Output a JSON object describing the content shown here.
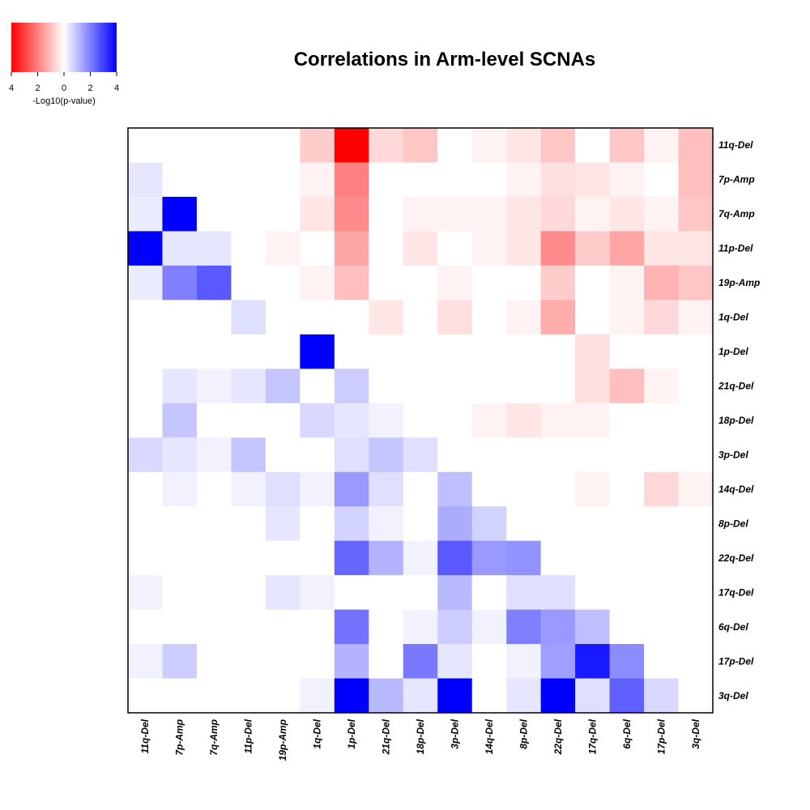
{
  "chart_data": {
    "type": "heatmap",
    "title": "Correlations in Arm-level SCNAs",
    "columns": [
      "11q-Del",
      "7p-Amp",
      "7q-Amp",
      "11p-Del",
      "19p-Amp",
      "1q-Del",
      "1p-Del",
      "21q-Del",
      "18p-Del",
      "3p-Del",
      "14q-Del",
      "8p-Del",
      "22q-Del",
      "17q-Del",
      "6q-Del",
      "17p-Del",
      "3q-Del"
    ],
    "rows": [
      "11q-Del",
      "7p-Amp",
      "7q-Amp",
      "11p-Del",
      "19p-Amp",
      "1q-Del",
      "1p-Del",
      "21q-Del",
      "18p-Del",
      "3p-Del",
      "14q-Del",
      "8p-Del",
      "22q-Del",
      "17q-Del",
      "6q-Del",
      "17p-Del",
      "3q-Del"
    ],
    "value_note": "signed -Log10(p-value): negative = red, positive = blue",
    "values": [
      [
        0,
        0,
        0,
        0,
        0,
        -0.8,
        -4,
        -0.6,
        -0.9,
        0,
        -0.2,
        -0.4,
        -0.9,
        0,
        -0.9,
        -0.2,
        -1.0
      ],
      [
        0.4,
        0,
        0,
        0,
        0,
        -0.2,
        -2.0,
        0,
        0,
        0,
        0,
        -0.2,
        -0.5,
        -0.4,
        -0.2,
        0,
        -1.0
      ],
      [
        0.3,
        4,
        0,
        0,
        0,
        -0.4,
        -1.8,
        0,
        -0.2,
        -0.2,
        -0.2,
        -0.4,
        -0.6,
        -0.2,
        -0.4,
        -0.2,
        -0.9
      ],
      [
        4,
        0.4,
        0.4,
        0,
        -0.2,
        0,
        -1.4,
        0,
        -0.4,
        0,
        -0.2,
        -0.4,
        -1.8,
        -0.8,
        -1.4,
        -0.4,
        -0.4
      ],
      [
        0.3,
        2.0,
        2.6,
        0,
        0,
        -0.2,
        -1.0,
        0,
        0,
        -0.2,
        0,
        0,
        -0.8,
        0,
        -0.2,
        -1.2,
        -0.9
      ],
      [
        0,
        0,
        0,
        0.5,
        0,
        0,
        0,
        -0.4,
        0,
        -0.5,
        0,
        -0.2,
        -1.3,
        0,
        -0.2,
        -0.6,
        -0.2
      ],
      [
        0,
        0,
        0,
        0,
        0,
        4,
        0,
        0,
        0,
        0,
        0,
        0,
        0,
        -0.5,
        0,
        0,
        0
      ],
      [
        0,
        0.4,
        0.2,
        0.4,
        0.9,
        0,
        0.8,
        0,
        0,
        0,
        0,
        0,
        0,
        -0.5,
        -1.0,
        -0.2,
        0
      ],
      [
        0,
        0.9,
        0,
        0,
        0,
        0.6,
        0.4,
        0.2,
        0,
        0,
        -0.2,
        -0.4,
        -0.2,
        -0.2,
        0,
        0,
        0
      ],
      [
        0.6,
        0.4,
        0.2,
        0.9,
        0,
        0,
        0.5,
        0.9,
        0.5,
        0,
        0,
        0,
        0,
        0,
        0,
        0,
        0
      ],
      [
        0,
        0.2,
        0,
        0.2,
        0.5,
        0.2,
        1.6,
        0.5,
        0,
        1.0,
        0,
        0,
        0,
        -0.2,
        0,
        -0.6,
        -0.2
      ],
      [
        0,
        0,
        0,
        0,
        0.4,
        0,
        0.7,
        0.2,
        0,
        1.3,
        0.7,
        0,
        0,
        0,
        0,
        0,
        0
      ],
      [
        0,
        0,
        0,
        0,
        0,
        0,
        2.4,
        1.2,
        0.2,
        2.6,
        1.6,
        1.7,
        0,
        0,
        0,
        0,
        0
      ],
      [
        0.2,
        0,
        0,
        0,
        0.4,
        0.2,
        0,
        0,
        0,
        1.1,
        0,
        0.5,
        0.5,
        0,
        0,
        0,
        0
      ],
      [
        0,
        0,
        0,
        0,
        0,
        0,
        2.2,
        0,
        0.2,
        0.8,
        0.2,
        2.0,
        1.6,
        1.0,
        0,
        0,
        0
      ],
      [
        0.2,
        0.8,
        0,
        0,
        0,
        0,
        1.2,
        0,
        2.1,
        0.4,
        0,
        0.2,
        1.5,
        3.6,
        1.8,
        0,
        0
      ],
      [
        0,
        0,
        0,
        0,
        0,
        0.2,
        4,
        1.1,
        0.4,
        4,
        0,
        0.4,
        4,
        0.5,
        2.5,
        0.6,
        0
      ]
    ],
    "legend": {
      "label": "-Log10(p-value)",
      "ticks": [
        "4",
        "2",
        "0",
        "2",
        "4"
      ],
      "tick_values": [
        -4,
        -2,
        0,
        2,
        4
      ],
      "low_color": "#ff0000",
      "mid_color": "#ffffff",
      "high_color": "#0000ff"
    },
    "grid": false
  }
}
